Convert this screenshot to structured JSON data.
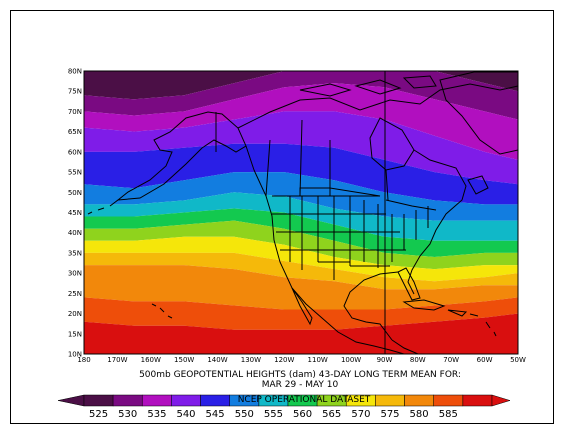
{
  "map": {
    "title_line1": "500mb GEOPOTENTIAL HEIGHTS (dam)   43-DAY LONG TERM MEAN FOR:",
    "title_line2": "MAR 29 - MAY 10",
    "dataset_label": "NCEP OPERATIONAL DATASET",
    "lat_labels": [
      "80N",
      "75N",
      "70N",
      "65N",
      "60N",
      "55N",
      "50N",
      "45N",
      "40N",
      "35N",
      "30N",
      "25N",
      "20N",
      "15N",
      "10N"
    ],
    "lon_labels": [
      "180",
      "170W",
      "160W",
      "150W",
      "140W",
      "130W",
      "120W",
      "110W",
      "100W",
      "90W",
      "80W",
      "70W",
      "60W",
      "50W"
    ],
    "lat_range": [
      10,
      80
    ],
    "lon_range": [
      -180,
      -50
    ],
    "contour_levels": [
      525,
      530,
      535,
      540,
      545,
      550,
      555,
      560,
      565,
      570,
      575,
      580,
      585
    ],
    "legend_labels": [
      "525",
      "530",
      "535",
      "540",
      "545",
      "550",
      "555",
      "560",
      "565",
      "570",
      "575",
      "580",
      "585"
    ],
    "colors": [
      "#4b0f46",
      "#7a0a82",
      "#b10fbf",
      "#7f1ce8",
      "#2a1fe6",
      "#127de0",
      "#10b8c8",
      "#13c94f",
      "#8fd31d",
      "#f5e60a",
      "#f5b90a",
      "#f2880b",
      "#ee4e0a",
      "#d90f0f"
    ]
  }
}
